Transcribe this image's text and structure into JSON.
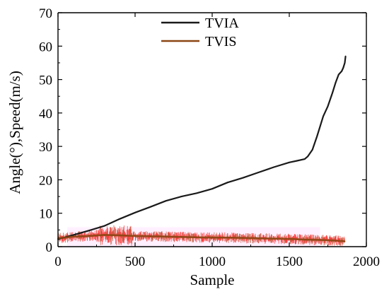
{
  "chart_data": {
    "type": "line",
    "xlabel": "Sample",
    "ylabel": "Angle(°),Speed(m/s)",
    "xlim": [
      0,
      2000
    ],
    "ylim": [
      0,
      70
    ],
    "xticks": [
      0,
      500,
      1000,
      1500,
      2000
    ],
    "yticks": [
      0,
      10,
      20,
      30,
      40,
      50,
      60,
      70
    ],
    "xtick_labels": [
      "0",
      "500",
      "1000",
      "1500",
      "2000"
    ],
    "ytick_labels": [
      "0",
      "10",
      "20",
      "30",
      "40",
      "50",
      "60",
      "70"
    ],
    "legend_position": "top-center",
    "grid": false,
    "series": [
      {
        "name": "TVIA",
        "color": "#1a1a1a",
        "x": [
          0,
          100,
          200,
          300,
          400,
          500,
          600,
          700,
          800,
          900,
          1000,
          1100,
          1200,
          1300,
          1400,
          1500,
          1550,
          1600,
          1620,
          1650,
          1680,
          1700,
          1720,
          1750,
          1780,
          1800,
          1820,
          1840,
          1850,
          1860,
          1865
        ],
        "y": [
          2.2,
          3.5,
          4.8,
          6.2,
          8.3,
          10.2,
          11.9,
          13.7,
          15,
          16,
          17.3,
          19.2,
          20.6,
          22.2,
          23.8,
          25.2,
          25.7,
          26.2,
          27,
          29,
          33,
          36,
          39,
          42,
          46,
          49,
          51.5,
          52.5,
          53.5,
          55,
          57
        ]
      },
      {
        "name": "TVIS",
        "color": "#8b4513",
        "x": [
          0,
          100,
          200,
          300,
          400,
          500,
          600,
          700,
          800,
          900,
          1000,
          1100,
          1200,
          1300,
          1400,
          1500,
          1600,
          1700,
          1800,
          1860
        ],
        "y": [
          2.5,
          3,
          3.2,
          3.5,
          3.4,
          3.2,
          3.1,
          3,
          2.9,
          2.8,
          2.7,
          2.7,
          2.6,
          2.5,
          2.4,
          2.3,
          2.1,
          2,
          1.8,
          1.6
        ]
      }
    ]
  }
}
